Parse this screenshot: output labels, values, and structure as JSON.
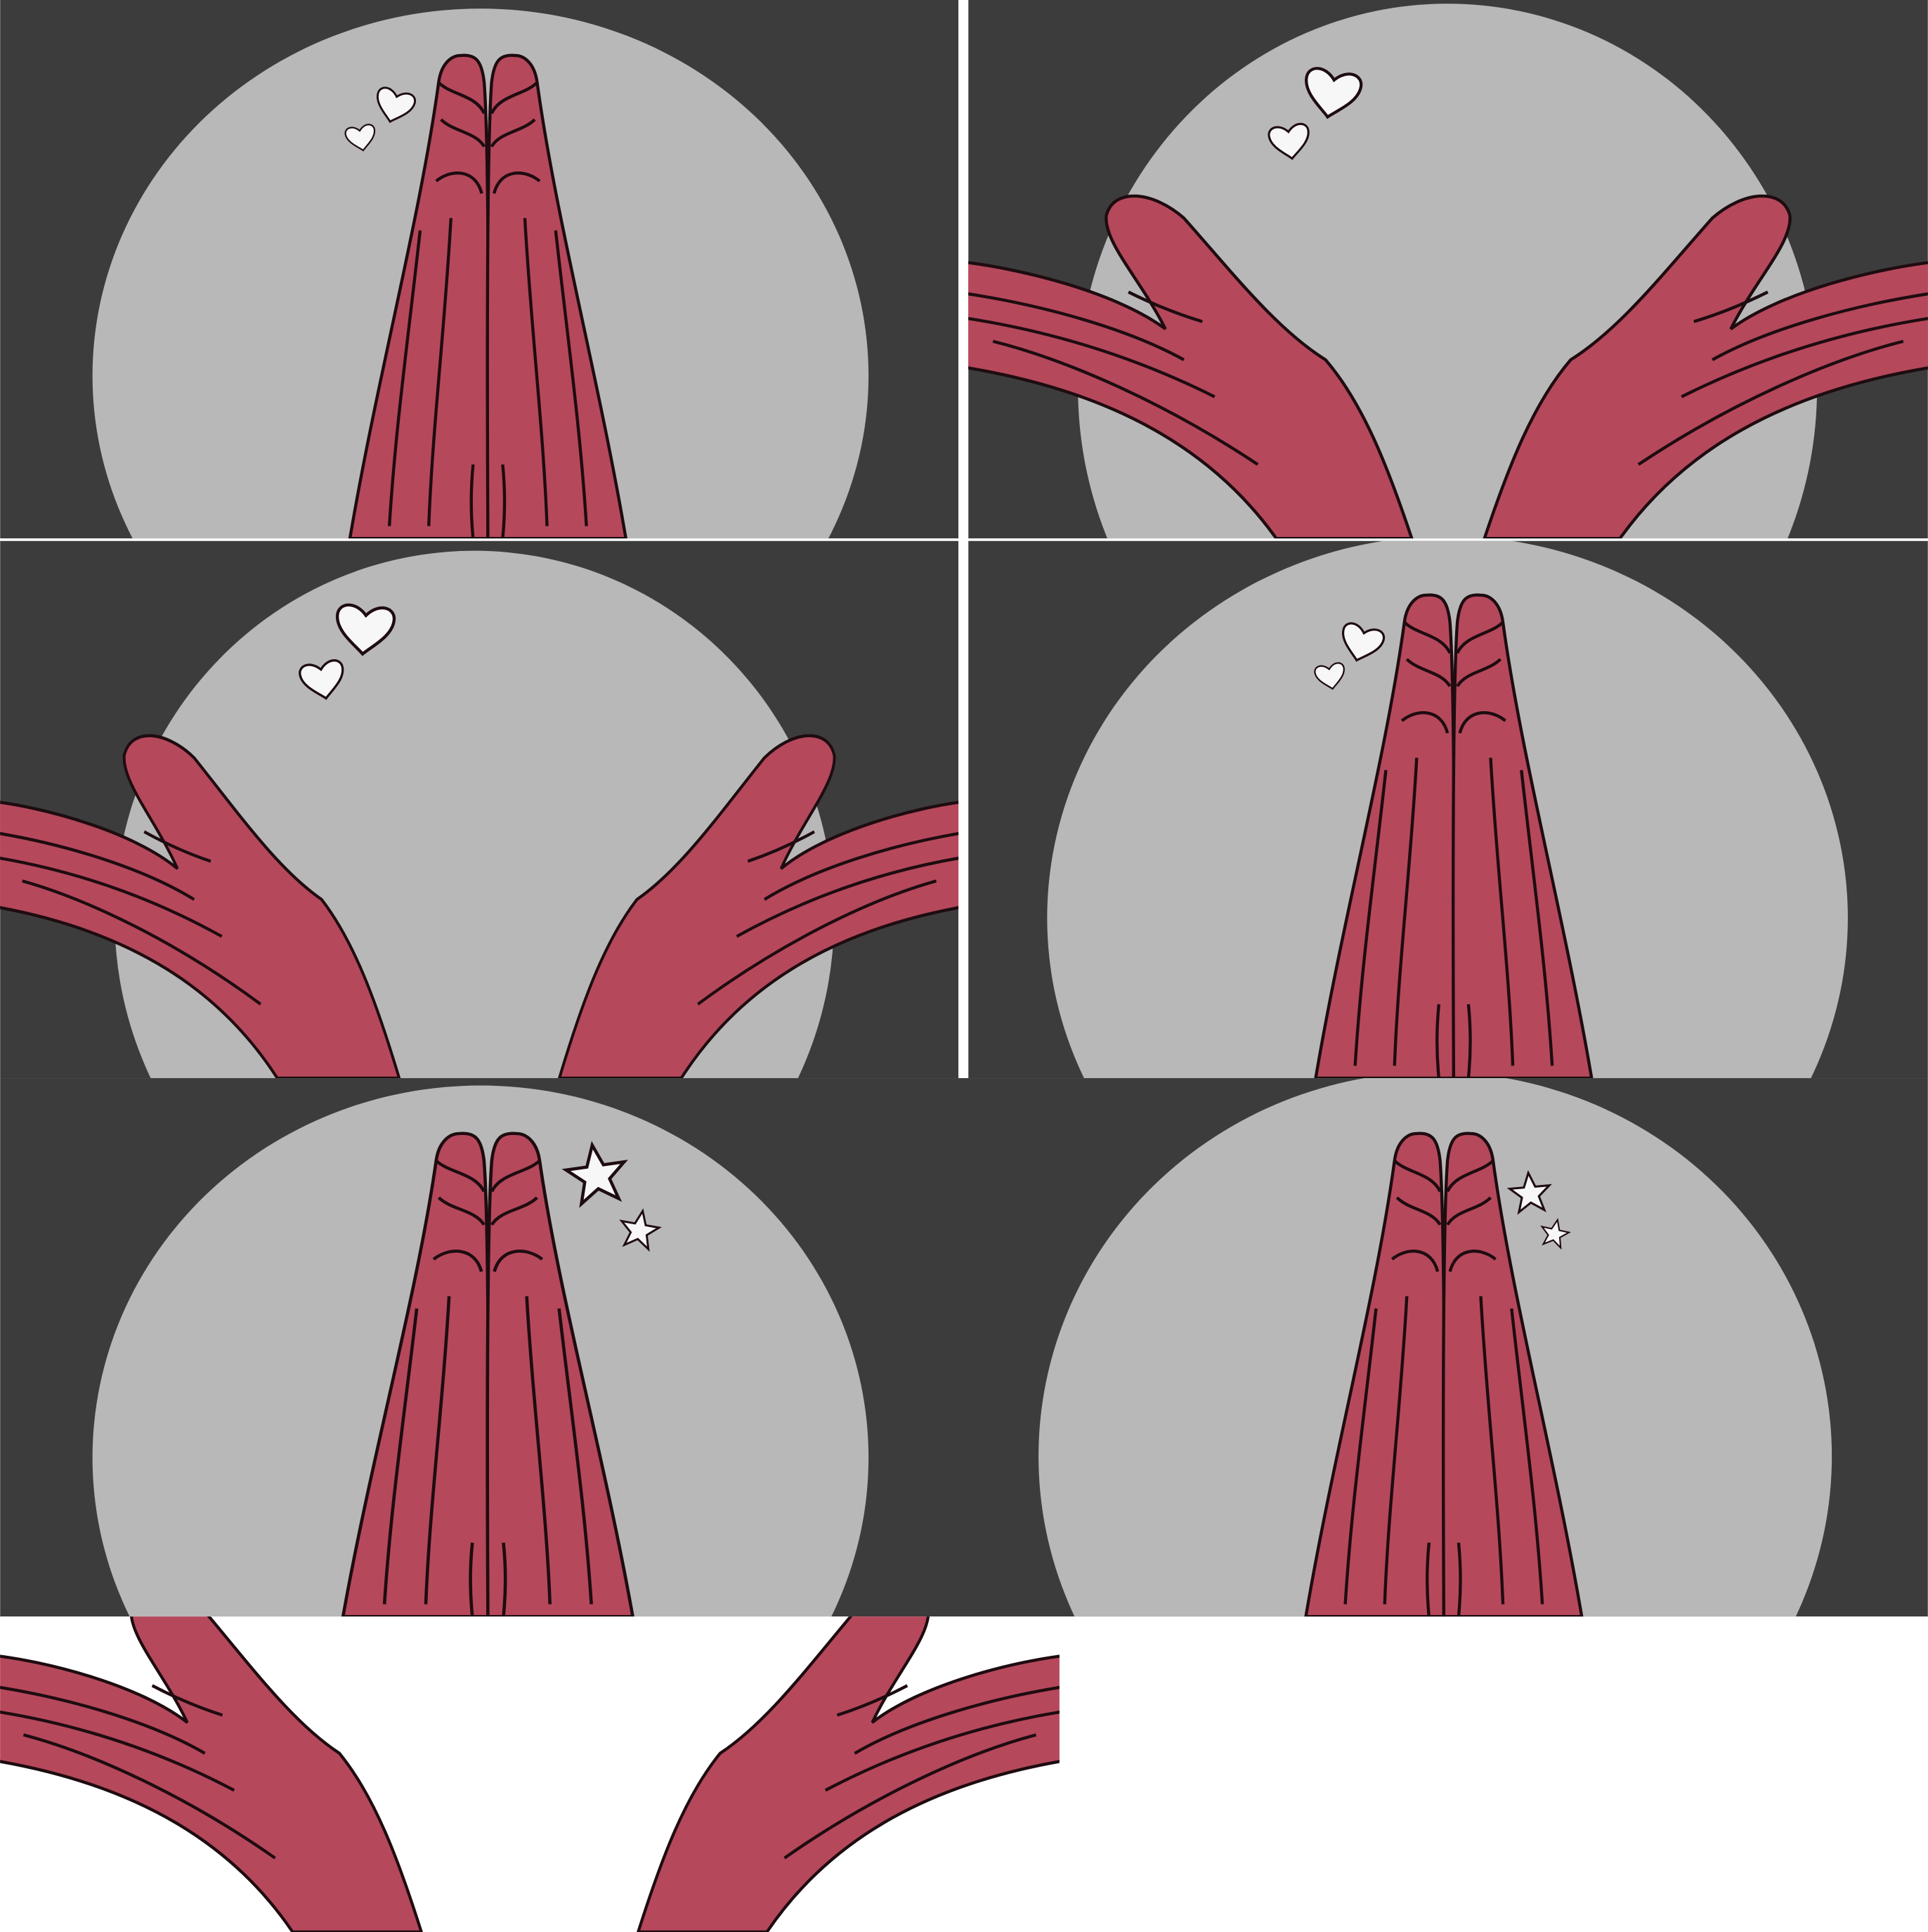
{
  "sheet": {
    "background_color": "#ffffff",
    "panel_background_color": "#3c3c3c",
    "circle_color": "#b8b8b8",
    "hand_fill_color": "#b6485c",
    "hand_outline_color": "#1e0c10",
    "sticker_fill_color": "#f7f7f7"
  },
  "panels": [
    {
      "name": "panel-praying-hands-hearts",
      "pose": "praying-hands",
      "sticker": "hearts"
    },
    {
      "name": "panel-open-hands-hearts",
      "pose": "open-hands",
      "sticker": "hearts"
    },
    {
      "name": "panel-open-hands-hearts-2",
      "pose": "open-hands",
      "sticker": "hearts"
    },
    {
      "name": "panel-praying-hands-hearts-2",
      "pose": "praying-hands",
      "sticker": "hearts"
    },
    {
      "name": "panel-praying-hands-stars",
      "pose": "praying-hands",
      "sticker": "stars"
    },
    {
      "name": "panel-praying-hands-stars-2",
      "pose": "praying-hands",
      "sticker": "stars"
    },
    {
      "name": "panel-open-hands-no-background",
      "pose": "open-hands",
      "sticker": "none"
    }
  ]
}
